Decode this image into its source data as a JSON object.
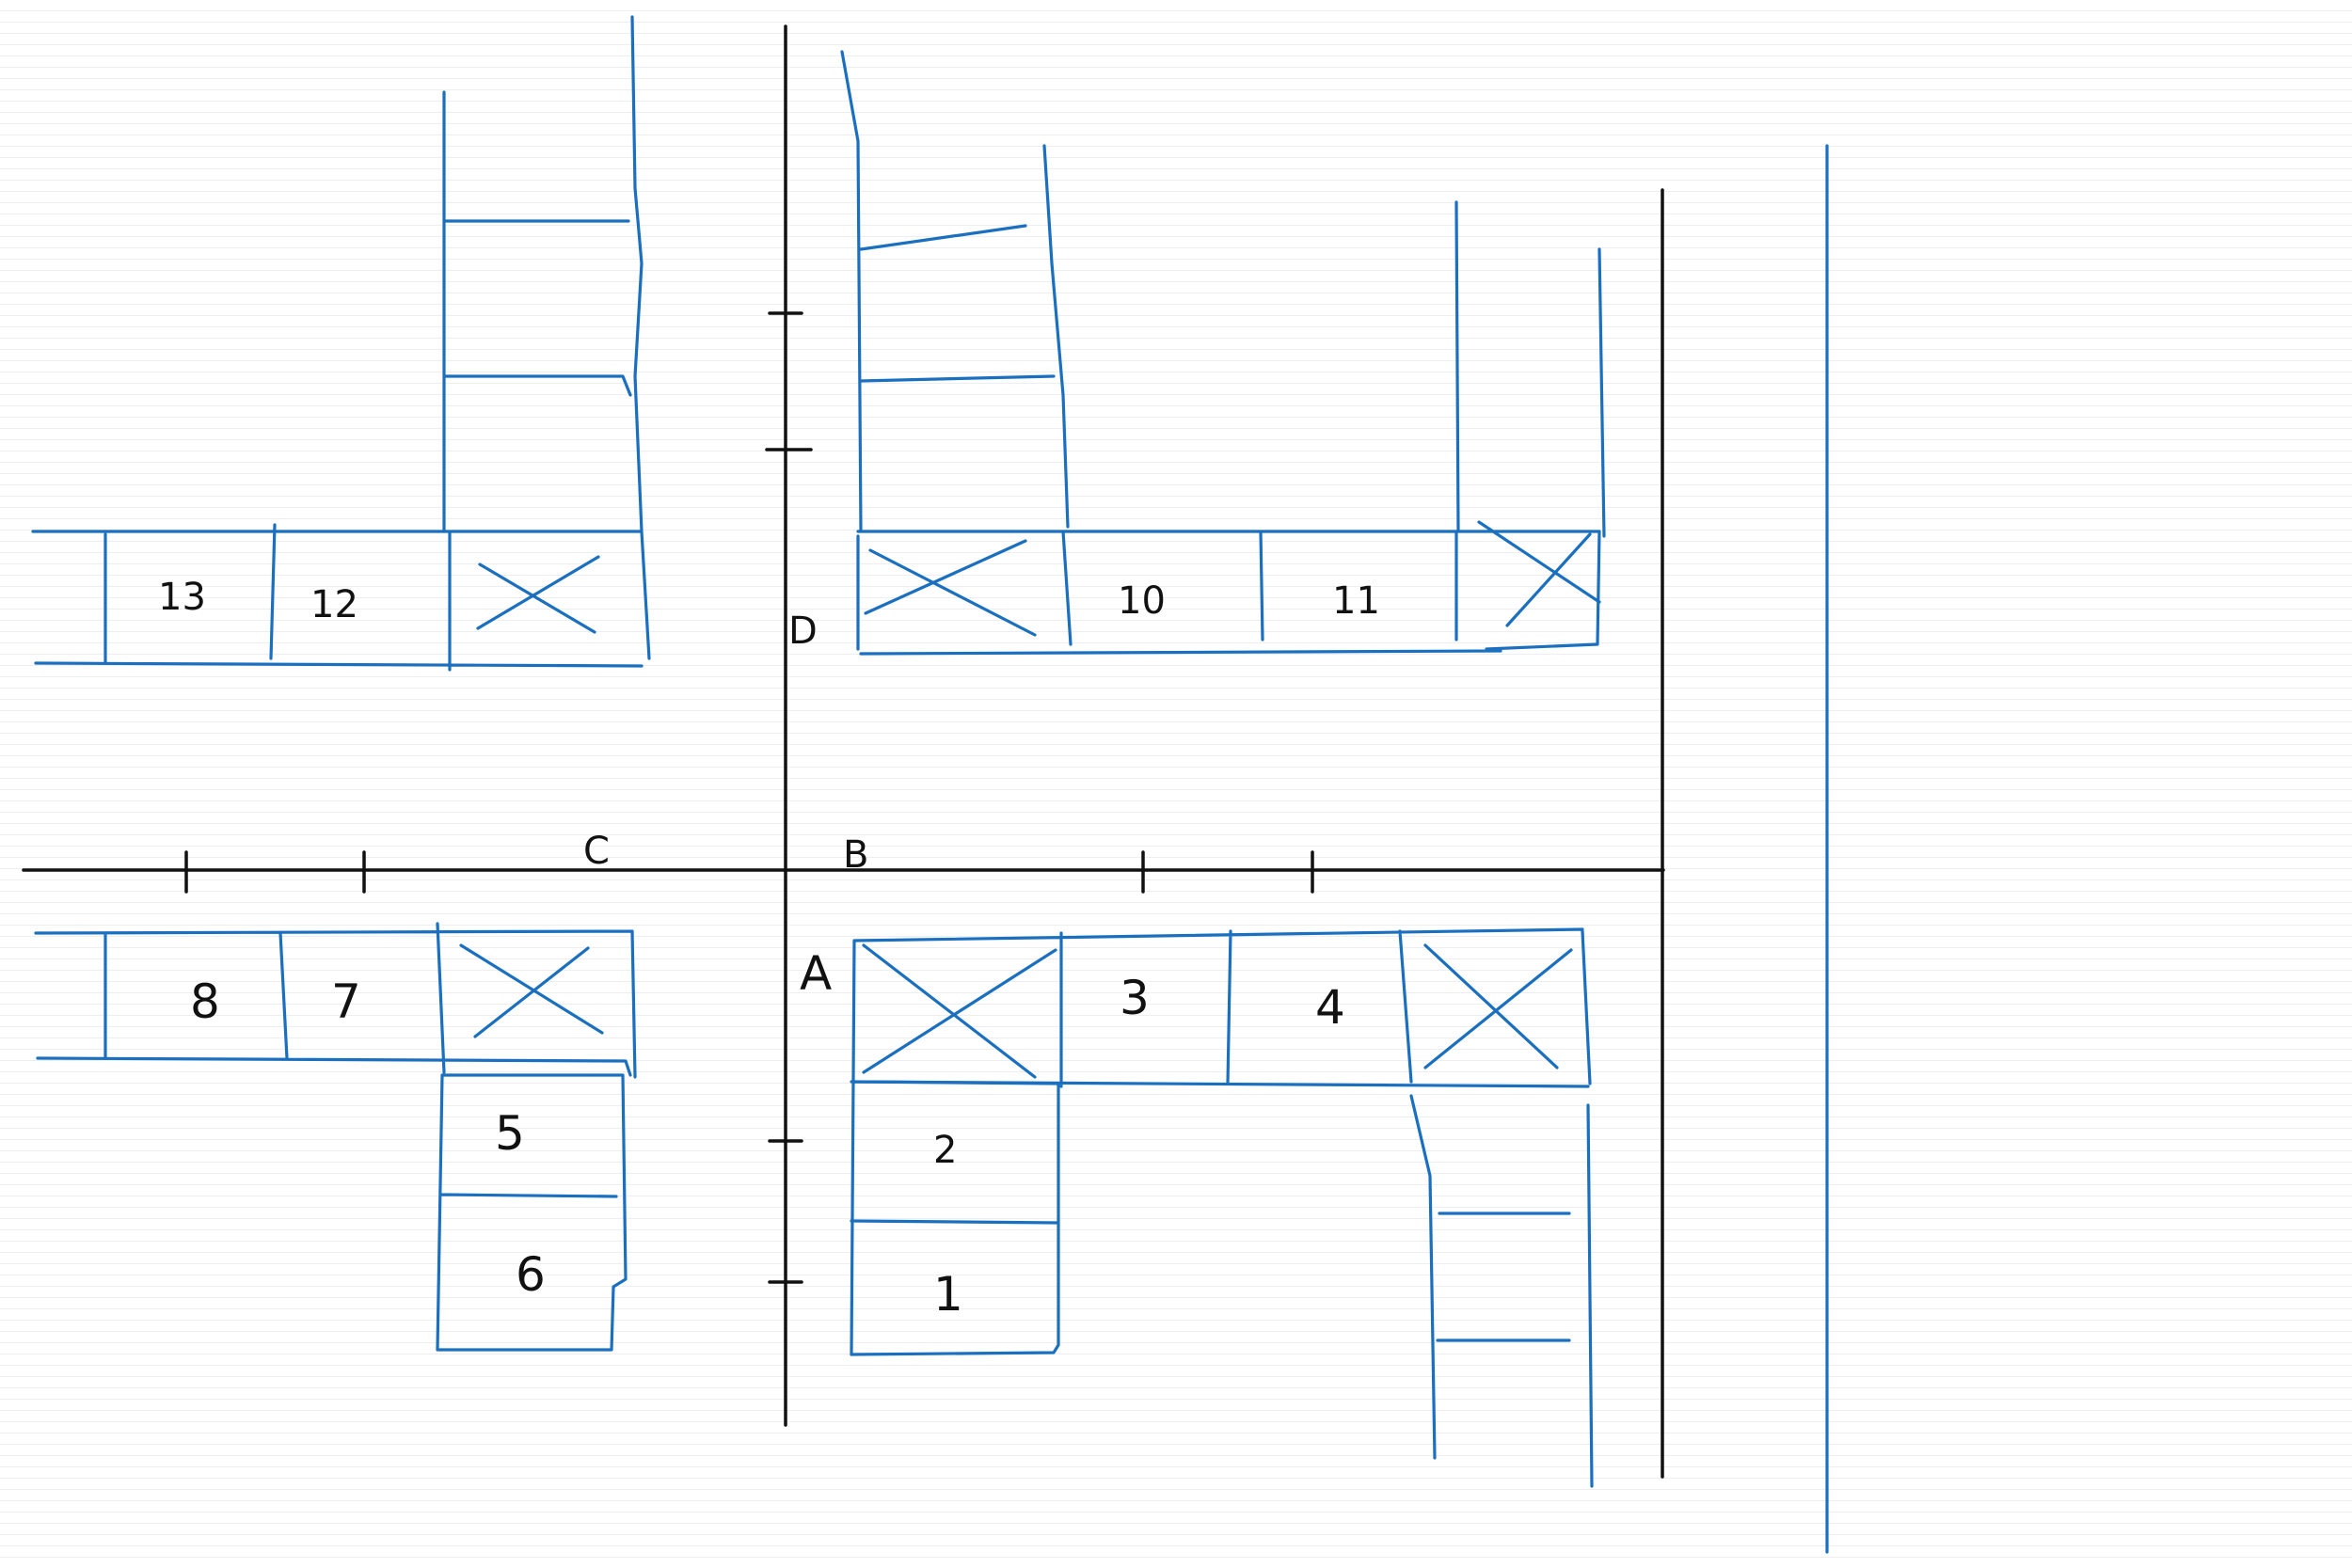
{
  "diagram": {
    "colors": {
      "ink_blue": "#1a6fbf",
      "ink_black": "#111111",
      "paper_lines": "#eceef2"
    },
    "axis_labels": {
      "A": "A",
      "B": "B",
      "C": "C",
      "D": "D"
    },
    "cells": {
      "c1": "1",
      "c2": "2",
      "c3": "3",
      "c4": "4",
      "c5": "5",
      "c6": "6",
      "c7": "7",
      "c8": "8",
      "c10": "10",
      "c11": "11",
      "c12": "12",
      "c13": "13"
    }
  }
}
